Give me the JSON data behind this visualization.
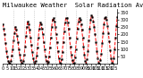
{
  "title": "Milwaukee Weather  Solar Radiation Avg per Day W/m2/minute",
  "y_values": [
    270,
    240,
    200,
    140,
    90,
    50,
    20,
    10,
    5,
    20,
    55,
    100,
    160,
    210,
    250,
    230,
    190,
    150,
    100,
    60,
    25,
    10,
    5,
    20,
    60,
    120,
    190,
    250,
    290,
    270,
    230,
    180,
    130,
    80,
    40,
    15,
    5,
    20,
    55,
    110,
    180,
    240,
    280,
    270,
    240,
    200,
    150,
    100,
    50,
    20,
    5,
    15,
    50,
    110,
    180,
    250,
    300,
    310,
    290,
    250,
    200,
    150,
    90,
    40,
    10,
    5,
    30,
    80,
    150,
    220,
    280,
    310,
    310,
    280,
    240,
    180,
    120,
    65,
    25,
    5,
    10,
    45,
    100,
    170,
    240,
    290,
    310,
    300,
    270,
    230,
    180,
    120,
    60,
    20,
    5,
    30,
    85,
    160,
    240,
    300,
    330,
    320,
    290,
    250,
    200,
    150,
    90,
    40,
    10,
    5,
    25,
    70,
    140,
    210,
    270,
    310,
    320,
    300,
    260,
    210,
    155,
    95,
    40,
    10,
    5,
    40,
    100,
    180,
    260,
    320
  ],
  "line_color": "#ff0000",
  "marker_color": "#000000",
  "bg_color": "#ffffff",
  "grid_color": "#aaaaaa",
  "axis_color": "#000000",
  "title_fontsize": 5.0,
  "tick_fontsize": 3.5,
  "ylim": [
    0,
    370
  ],
  "yticks": [
    50,
    100,
    150,
    200,
    250,
    300,
    350
  ],
  "ytick_labels": [
    "50",
    "100",
    "150",
    "200",
    "250",
    "300",
    "350"
  ],
  "n_vgrid": 11,
  "linestyle": "--",
  "linewidth": 0.7,
  "marker": "s",
  "markersize": 1.2,
  "dpi": 100,
  "fig_w": 1.6,
  "fig_h": 0.87
}
